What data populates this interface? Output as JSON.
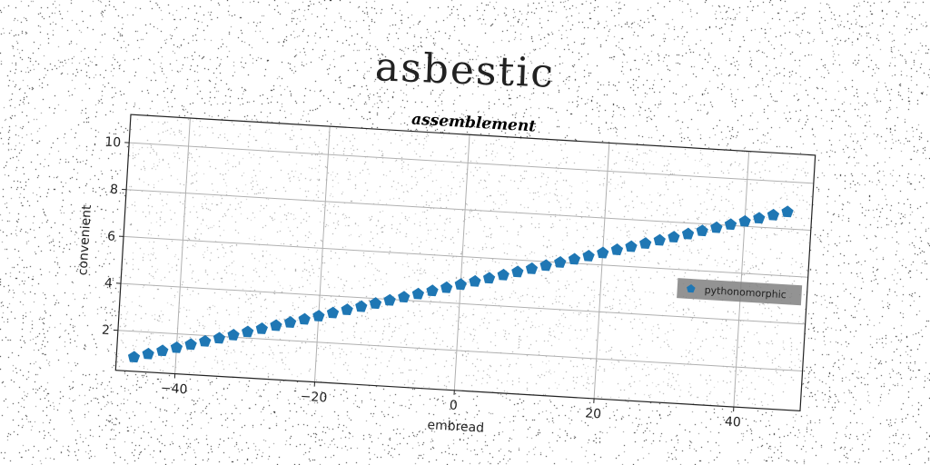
{
  "figure": {
    "suptitle": "asbestic"
  },
  "chart_data": {
    "type": "scatter",
    "title": "assemblement",
    "xlabel": "embread",
    "ylabel": "convenient",
    "xlim": [
      -48.5,
      49.5
    ],
    "ylim": [
      0.3,
      11.2
    ],
    "xticks": [
      -40,
      -20,
      0,
      20,
      40
    ],
    "yticks": [
      2,
      4,
      6,
      8,
      10
    ],
    "xtick_labels": [
      "−40",
      "−20",
      "0",
      "20",
      "40"
    ],
    "ytick_labels": [
      "2",
      "4",
      "6",
      "8",
      "10"
    ],
    "grid": true,
    "legend": {
      "position": "center-right"
    },
    "marker": "pentagon",
    "colors": {
      "series": "#1f77b4",
      "grid": "#b0b0b0",
      "legend_bg": "#808080"
    },
    "series": [
      {
        "name": "pythonomorphic",
        "x": [
          -46,
          -44,
          -42,
          -40,
          -38,
          -36,
          -34,
          -32,
          -30,
          -28,
          -26,
          -24,
          -22,
          -20,
          -18,
          -16,
          -14,
          -12,
          -10,
          -8,
          -6,
          -4,
          -2,
          0,
          2,
          4,
          6,
          8,
          10,
          12,
          14,
          16,
          18,
          20,
          22,
          24,
          26,
          28,
          30,
          32,
          34,
          36,
          38,
          40,
          42,
          44,
          46
        ],
        "y": [
          0.9,
          1.07,
          1.24,
          1.41,
          1.58,
          1.75,
          1.92,
          2.09,
          2.26,
          2.43,
          2.6,
          2.77,
          2.94,
          3.11,
          3.28,
          3.45,
          3.62,
          3.79,
          3.96,
          4.13,
          4.3,
          4.47,
          4.64,
          4.81,
          4.98,
          5.15,
          5.32,
          5.49,
          5.66,
          5.83,
          6.0,
          6.17,
          6.34,
          6.51,
          6.68,
          6.85,
          7.02,
          7.19,
          7.36,
          7.53,
          7.7,
          7.87,
          8.04,
          8.21,
          8.38,
          8.55,
          8.72
        ]
      }
    ]
  }
}
